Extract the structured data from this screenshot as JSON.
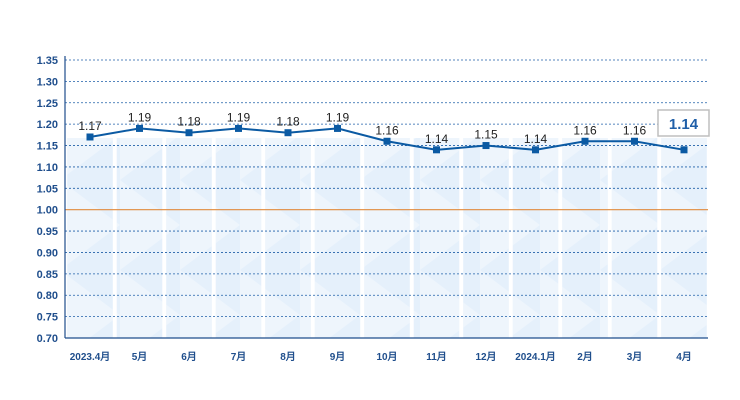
{
  "chart_data": {
    "type": "line",
    "categories": [
      "2023.4月",
      "5月",
      "6月",
      "7月",
      "8月",
      "9月",
      "10月",
      "11月",
      "12月",
      "2024.1月",
      "2月",
      "3月",
      "4月"
    ],
    "series": [
      {
        "values": [
          1.17,
          1.19,
          1.18,
          1.19,
          1.18,
          1.19,
          1.16,
          1.14,
          1.15,
          1.14,
          1.16,
          1.16,
          1.14
        ]
      }
    ],
    "data_labels": [
      "1.17",
      "1.19",
      "1.18",
      "1.19",
      "1.18",
      "1.19",
      "1.16",
      "1.14",
      "1.15",
      "1.14",
      "1.16",
      "1.16",
      ""
    ],
    "y_ticks": [
      "0.70",
      "0.75",
      "0.80",
      "0.85",
      "0.90",
      "0.95",
      "1.00",
      "1.05",
      "1.10",
      "1.15",
      "1.20",
      "1.25",
      "1.30",
      "1.35"
    ],
    "ylim": [
      0.7,
      1.35
    ],
    "reference_line": 1.0,
    "callout": "1.14",
    "title": "",
    "xlabel": "",
    "ylabel": "",
    "grid": true,
    "legend": "none",
    "colors": {
      "line": "#0b5aa3",
      "grid": "#1f5fa8",
      "reference": "#e08a3c",
      "axis": "#1f4e8c",
      "band": "#cfe3f7"
    }
  }
}
